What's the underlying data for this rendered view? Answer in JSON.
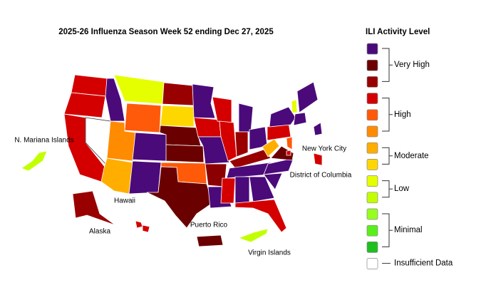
{
  "title": "2025-26 Influenza Season Week 52 ending Dec 27, 2025",
  "map_labels": [
    "N. Mariana Islands",
    "Hawaii",
    "Alaska",
    "Puerto Rico",
    "Virgin Islands",
    "New York City",
    "District of Columbia"
  ],
  "legend": {
    "title": "ILI Activity Level",
    "groups": [
      {
        "label": "Very High",
        "colors": [
          "#4b0a7a",
          "#6b0000",
          "#990000"
        ]
      },
      {
        "label": "High",
        "colors": [
          "#d40000",
          "#ff5a0a",
          "#ff8c00"
        ]
      },
      {
        "label": "Moderate",
        "colors": [
          "#ffae00",
          "#ffd700"
        ]
      },
      {
        "label": "Low",
        "colors": [
          "#e6ff00",
          "#c2ff00"
        ]
      },
      {
        "label": "Minimal",
        "colors": [
          "#96ff1e",
          "#5aef1a",
          "#1fbf1f"
        ]
      },
      {
        "label": "Insufficient Data",
        "colors": [
          "#ffffff"
        ]
      }
    ]
  }
}
